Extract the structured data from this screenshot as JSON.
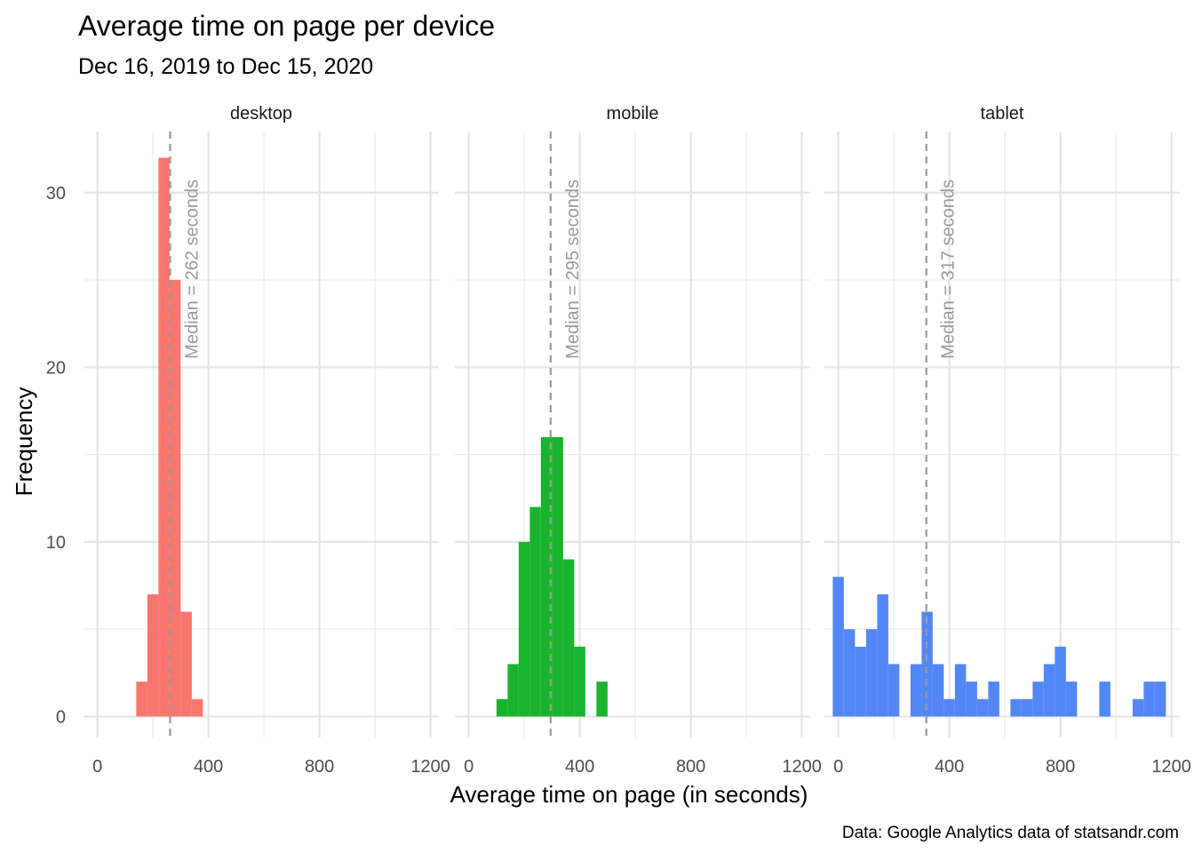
{
  "chart_data": {
    "type": "bar",
    "title": "Average time on page per device",
    "subtitle": "Dec 16, 2019 to Dec 15, 2020",
    "xlabel": "Average time on page (in seconds)",
    "ylabel": "Frequency",
    "caption": "Data: Google Analytics data of statsandr.com",
    "xlim": [
      -50,
      1230
    ],
    "ylim": [
      -1.2,
      33.5
    ],
    "x_ticks": [
      0,
      400,
      800,
      1200
    ],
    "x_tick_labels": [
      "0",
      "400",
      "800",
      "1200"
    ],
    "y_ticks": [
      0,
      10,
      20,
      30
    ],
    "y_tick_labels": [
      "0",
      "10",
      "20",
      "30"
    ],
    "grid": true,
    "bin_width": 40,
    "median_line_style": "dashed",
    "median_color": "#999999",
    "panels": [
      {
        "name": "desktop",
        "color": "#F8766D",
        "median": 262,
        "median_label": "Median = 262 seconds",
        "bins": [
          {
            "start": 140,
            "count": 2
          },
          {
            "start": 180,
            "count": 7
          },
          {
            "start": 220,
            "count": 32
          },
          {
            "start": 260,
            "count": 25
          },
          {
            "start": 300,
            "count": 6
          },
          {
            "start": 340,
            "count": 1
          }
        ]
      },
      {
        "name": "mobile",
        "color": "#1AB32E",
        "median": 295,
        "median_label": "Median = 295 seconds",
        "bins": [
          {
            "start": 100,
            "count": 1
          },
          {
            "start": 140,
            "count": 3
          },
          {
            "start": 180,
            "count": 10
          },
          {
            "start": 220,
            "count": 12
          },
          {
            "start": 260,
            "count": 16
          },
          {
            "start": 300,
            "count": 16
          },
          {
            "start": 340,
            "count": 9
          },
          {
            "start": 380,
            "count": 4
          },
          {
            "start": 460,
            "count": 2
          }
        ]
      },
      {
        "name": "tablet",
        "color": "#5386F7",
        "median": 317,
        "median_label": "Median = 317 seconds",
        "bins": [
          {
            "start": -20,
            "count": 8
          },
          {
            "start": 20,
            "count": 5
          },
          {
            "start": 60,
            "count": 4
          },
          {
            "start": 100,
            "count": 5
          },
          {
            "start": 140,
            "count": 7
          },
          {
            "start": 180,
            "count": 3
          },
          {
            "start": 260,
            "count": 3
          },
          {
            "start": 300,
            "count": 6
          },
          {
            "start": 340,
            "count": 3
          },
          {
            "start": 380,
            "count": 1
          },
          {
            "start": 420,
            "count": 3
          },
          {
            "start": 460,
            "count": 2
          },
          {
            "start": 500,
            "count": 1
          },
          {
            "start": 540,
            "count": 2
          },
          {
            "start": 620,
            "count": 1
          },
          {
            "start": 660,
            "count": 1
          },
          {
            "start": 700,
            "count": 2
          },
          {
            "start": 740,
            "count": 3
          },
          {
            "start": 780,
            "count": 4
          },
          {
            "start": 820,
            "count": 2
          },
          {
            "start": 940,
            "count": 2
          },
          {
            "start": 1060,
            "count": 1
          },
          {
            "start": 1100,
            "count": 2
          },
          {
            "start": 1140,
            "count": 2
          }
        ]
      }
    ]
  }
}
